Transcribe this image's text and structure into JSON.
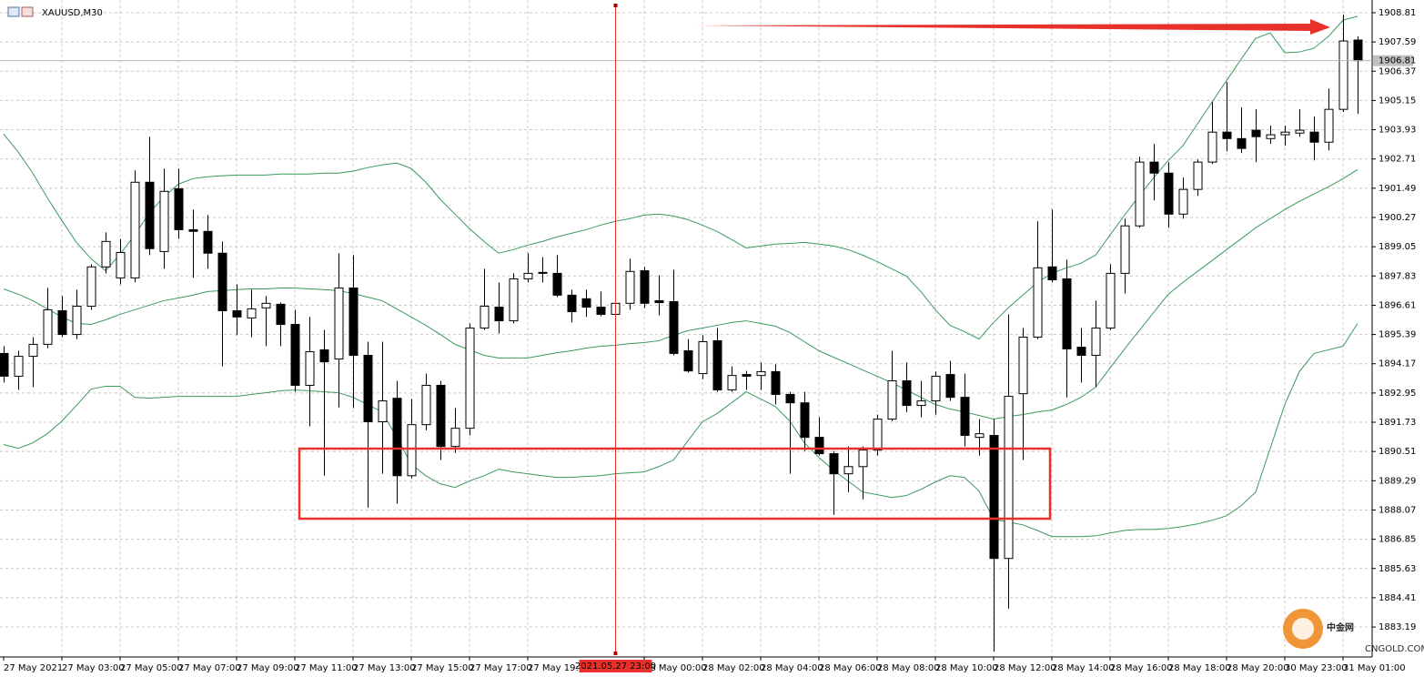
{
  "chart_data": {
    "type": "candlestick",
    "title": "XAUUSD,M30",
    "crosshair_label": "2021.05.27 23:00",
    "bid": 1906.81,
    "watermark": "中金网",
    "watermark_sub": "CNGOLD.COM",
    "up_color": "#ffffff",
    "down_color": "#000000",
    "grid": true,
    "ylim": [
      1881.94,
      1909.34
    ],
    "yticks": [
      1908.81,
      1907.59,
      1906.37,
      1905.15,
      1903.93,
      1902.71,
      1901.49,
      1900.27,
      1899.05,
      1897.83,
      1896.61,
      1895.39,
      1894.17,
      1892.95,
      1891.73,
      1890.51,
      1889.29,
      1888.07,
      1886.85,
      1885.63,
      1884.41,
      1883.19
    ],
    "categories": [
      "27 May 2021",
      null,
      null,
      null,
      "27 May 03:00",
      null,
      null,
      null,
      "27 May 05:00",
      null,
      null,
      null,
      "27 May 07:00",
      null,
      null,
      null,
      "27 May 09:00",
      null,
      null,
      null,
      "27 May 11:00",
      null,
      null,
      null,
      "27 May 13:00",
      null,
      null,
      null,
      "27 May 15:00",
      null,
      null,
      null,
      "27 May 17:00",
      null,
      null,
      null,
      "27 May 19:00",
      null,
      null,
      null,
      null,
      null,
      null,
      null,
      "28 May 00:00",
      null,
      null,
      null,
      "28 May 02:00",
      null,
      null,
      null,
      "28 May 04:00",
      null,
      null,
      null,
      "28 May 06:00",
      null,
      null,
      null,
      "28 May 08:00",
      null,
      null,
      null,
      "28 May 10:00",
      null,
      null,
      null,
      "28 May 12:00",
      null,
      null,
      null,
      "28 May 14:00",
      null,
      null,
      null,
      "28 May 16:00",
      null,
      null,
      null,
      "28 May 18:00",
      null,
      null,
      null,
      "28 May 20:00",
      null,
      null,
      null,
      "30 May 23:00",
      null,
      null,
      null,
      "31 May 01:00",
      null
    ],
    "open": [
      1894.6,
      1893.65,
      1894.48,
      1894.98,
      1896.38,
      1895.39,
      1896.57,
      1898.21,
      1897.75,
      1897.75,
      1901.74,
      1898.85,
      1901.47,
      1899.76,
      1899.69,
      1898.78,
      1896.38,
      1896.08,
      1896.5,
      1896.65,
      1895.81,
      1893.27,
      1894.75,
      1894.37,
      1897.33,
      1894.52,
      1891.75,
      1892.73,
      1889.5,
      1891.63,
      1893.27,
      1890.72,
      1891.48,
      1895.66,
      1896.53,
      1895.96,
      1897.71,
      1897.98,
      1897.94,
      1897.03,
      1896.88,
      1896.53,
      1896.23,
      1896.69,
      1898.05,
      1896.8,
      1896.76,
      1894.71,
      1893.76,
      1895.13,
      1893.08,
      1893.72,
      1893.68,
      1893.84,
      1892.89,
      1892.54,
      1891.1,
      1890.42,
      1889.58,
      1889.88,
      1890.57,
      1891.86,
      1893.46,
      1892.43,
      1892.62,
      1893.72,
      1892.77,
      1891.1,
      1891.18,
      1886.05,
      1892.92,
      1895.28,
      1898.21,
      1897.71,
      1894.86,
      1894.52,
      1895.66,
      1897.94,
      1899.92,
      1902.58,
      1902.12,
      1900.41,
      1901.44,
      1902.58,
      1903.83,
      1903.56,
      1903.91,
      1903.56,
      1903.72,
      1903.79,
      1903.83,
      1903.41,
      1904.78,
      1907.67
    ],
    "high": [
      1894.9,
      1894.71,
      1895.28,
      1897.33,
      1896.99,
      1897.26,
      1898.32,
      1899.65,
      1899.38,
      1902.23,
      1903.64,
      1902.31,
      1902.31,
      1900.6,
      1900.37,
      1899.27,
      1897.48,
      1897.26,
      1896.99,
      1896.72,
      1896.42,
      1896.12,
      1895.58,
      1898.78,
      1898.7,
      1895.09,
      1895.09,
      1893.46,
      1892.7,
      1893.76,
      1893.46,
      1892.32,
      1895.85,
      1898.13,
      1897.56,
      1897.94,
      1898.78,
      1898.62,
      1898.7,
      1897.26,
      1897.26,
      1897.18,
      1896.99,
      1898.55,
      1898.21,
      1897.86,
      1898.09,
      1895.2,
      1895.36,
      1895.66,
      1894.06,
      1893.87,
      1894.22,
      1894.14,
      1893.0,
      1893.0,
      1891.94,
      1890.53,
      1890.72,
      1890.72,
      1892.05,
      1894.71,
      1894.22,
      1893.46,
      1893.84,
      1894.29,
      1893.76,
      1891.86,
      1891.86,
      1896.23,
      1895.66,
      1900.11,
      1900.6,
      1898.51,
      1895.66,
      1896.8,
      1898.32,
      1900.22,
      1902.8,
      1903.34,
      1902.58,
      1901.93,
      1902.69,
      1905.08,
      1905.92,
      1904.86,
      1904.78,
      1904.1,
      1904.1,
      1904.78,
      1904.48,
      1905.65,
      1908.73,
      1907.82
    ],
    "low": [
      1893.38,
      1893.08,
      1893.19,
      1894.82,
      1895.28,
      1895.2,
      1896.42,
      1897.94,
      1897.48,
      1897.56,
      1898.7,
      1898.13,
      1899.38,
      1897.75,
      1898.13,
      1894.06,
      1895.36,
      1895.28,
      1894.9,
      1894.9,
      1893.0,
      1891.56,
      1889.5,
      1892.35,
      1892.32,
      1888.17,
      1889.58,
      1888.33,
      1889.39,
      1891.4,
      1890.15,
      1890.45,
      1891.18,
      1895.58,
      1895.43,
      1895.85,
      1897.56,
      1897.56,
      1896.95,
      1895.89,
      1896.12,
      1896.15,
      1896.19,
      1896.42,
      1896.5,
      1896.19,
      1894.52,
      1893.8,
      1893.53,
      1893.0,
      1893.0,
      1893.08,
      1893.08,
      1892.47,
      1889.58,
      1890.53,
      1890.34,
      1887.87,
      1888.82,
      1888.52,
      1890.34,
      1891.78,
      1892.16,
      1891.94,
      1892.05,
      1892.62,
      1890.72,
      1890.34,
      1882.17,
      1883.96,
      1890.15,
      1895.2,
      1897.56,
      1892.77,
      1893.38,
      1893.19,
      1895.58,
      1897.1,
      1899.84,
      1900.98,
      1899.84,
      1900.22,
      1901.17,
      1902.5,
      1903.03,
      1902.96,
      1902.58,
      1903.34,
      1903.26,
      1903.64,
      1902.65,
      1903.07,
      1904.67,
      1904.59
    ],
    "close": [
      1893.65,
      1894.48,
      1894.98,
      1896.42,
      1895.39,
      1896.57,
      1898.21,
      1899.27,
      1898.81,
      1901.74,
      1898.97,
      1901.36,
      1899.76,
      1899.69,
      1898.78,
      1896.38,
      1896.12,
      1896.46,
      1896.69,
      1895.81,
      1893.27,
      1894.67,
      1894.25,
      1897.33,
      1894.52,
      1891.75,
      1892.62,
      1889.5,
      1891.63,
      1893.27,
      1890.72,
      1891.48,
      1895.66,
      1896.57,
      1895.96,
      1897.71,
      1897.94,
      1897.94,
      1897.03,
      1896.34,
      1896.53,
      1896.23,
      1896.69,
      1898.02,
      1896.69,
      1896.72,
      1894.6,
      1893.87,
      1895.09,
      1893.08,
      1893.68,
      1893.65,
      1893.84,
      1892.89,
      1892.54,
      1891.1,
      1890.42,
      1889.58,
      1889.88,
      1890.57,
      1891.86,
      1893.46,
      1892.43,
      1892.62,
      1893.65,
      1892.77,
      1891.18,
      1891.25,
      1886.05,
      1892.81,
      1895.28,
      1898.17,
      1897.67,
      1894.79,
      1894.52,
      1895.66,
      1897.94,
      1899.92,
      1902.58,
      1902.12,
      1900.41,
      1901.44,
      1902.58,
      1903.83,
      1903.56,
      1903.15,
      1903.64,
      1903.72,
      1903.83,
      1903.91,
      1903.41,
      1904.78,
      1907.63,
      1906.81
    ],
    "bands": [
      {
        "color": "#3a9a5c",
        "values": [
          1903.75,
          1903.0,
          1902.12,
          1901.09,
          1900.14,
          1899.23,
          1898.55,
          1898.05,
          1898.74,
          1899.54,
          1900.45,
          1901.13,
          1901.66,
          1901.89,
          1901.97,
          1902.01,
          1902.04,
          1902.04,
          1902.04,
          1902.08,
          1902.08,
          1902.08,
          1902.12,
          1902.12,
          1902.2,
          1902.35,
          1902.46,
          1902.54,
          1902.31,
          1901.74,
          1901.02,
          1900.41,
          1899.8,
          1899.27,
          1898.78,
          1898.93,
          1899.12,
          1899.27,
          1899.46,
          1899.61,
          1899.76,
          1899.95,
          1900.11,
          1900.22,
          1900.37,
          1900.41,
          1900.33,
          1900.18,
          1899.95,
          1899.69,
          1899.35,
          1899.0,
          1899.08,
          1899.16,
          1899.19,
          1899.23,
          1899.16,
          1899.08,
          1898.93,
          1898.7,
          1898.43,
          1898.13,
          1897.83,
          1897.18,
          1896.42,
          1895.77,
          1895.51,
          1895.2,
          1895.89,
          1896.5,
          1897.03,
          1897.56,
          1897.94,
          1898.17,
          1898.36,
          1898.7,
          1899.54,
          1900.37,
          1901.17,
          1901.93,
          1902.65,
          1903.26,
          1904.17,
          1905.08,
          1905.98,
          1906.87,
          1907.74,
          1907.97,
          1907.14,
          1907.17,
          1907.33,
          1907.82,
          1908.5,
          1908.66
        ]
      },
      {
        "color": "#3a9a5c",
        "values": [
          1897.29,
          1897.07,
          1896.8,
          1896.46,
          1896.12,
          1895.85,
          1895.81,
          1896.0,
          1896.23,
          1896.42,
          1896.61,
          1896.8,
          1896.91,
          1897.03,
          1897.18,
          1897.22,
          1897.26,
          1897.29,
          1897.29,
          1897.33,
          1897.33,
          1897.29,
          1897.26,
          1897.22,
          1897.1,
          1896.95,
          1896.8,
          1896.46,
          1896.12,
          1895.77,
          1895.39,
          1894.98,
          1894.75,
          1894.52,
          1894.41,
          1894.41,
          1894.41,
          1894.52,
          1894.63,
          1894.71,
          1894.82,
          1894.9,
          1894.94,
          1895.01,
          1895.05,
          1895.13,
          1895.36,
          1895.55,
          1895.66,
          1895.77,
          1895.89,
          1895.96,
          1895.85,
          1895.74,
          1895.47,
          1895.09,
          1894.71,
          1894.44,
          1894.18,
          1893.91,
          1893.65,
          1893.38,
          1893.08,
          1892.77,
          1892.47,
          1892.28,
          1892.16,
          1892.01,
          1891.86,
          1891.97,
          1892.05,
          1892.16,
          1892.24,
          1892.47,
          1892.77,
          1893.19,
          1893.99,
          1894.79,
          1895.55,
          1896.31,
          1897.07,
          1897.56,
          1898.02,
          1898.47,
          1898.93,
          1899.38,
          1899.84,
          1900.22,
          1900.6,
          1900.94,
          1901.25,
          1901.55,
          1901.89,
          1902.27
        ]
      },
      {
        "color": "#3a9a5c",
        "values": [
          1890.8,
          1890.64,
          1890.87,
          1891.25,
          1891.78,
          1892.43,
          1893.11,
          1893.23,
          1893.23,
          1892.77,
          1892.73,
          1892.77,
          1892.81,
          1892.81,
          1892.81,
          1892.81,
          1892.81,
          1892.89,
          1892.96,
          1893.04,
          1893.08,
          1893.04,
          1893.0,
          1892.96,
          1892.77,
          1892.47,
          1892.16,
          1891.1,
          1889.98,
          1889.5,
          1889.16,
          1889.01,
          1889.28,
          1889.5,
          1889.77,
          1889.66,
          1889.58,
          1889.5,
          1889.43,
          1889.43,
          1889.47,
          1889.5,
          1889.58,
          1889.62,
          1889.66,
          1889.88,
          1890.15,
          1890.95,
          1891.75,
          1892.09,
          1892.54,
          1893.0,
          1892.7,
          1892.39,
          1891.78,
          1890.87,
          1890.26,
          1889.73,
          1889.28,
          1888.82,
          1888.71,
          1888.59,
          1888.67,
          1888.93,
          1889.24,
          1889.5,
          1889.43,
          1888.86,
          1887.68,
          1887.57,
          1887.45,
          1887.22,
          1886.96,
          1886.96,
          1886.96,
          1886.99,
          1887.11,
          1887.22,
          1887.26,
          1887.26,
          1887.3,
          1887.38,
          1887.49,
          1887.64,
          1887.83,
          1888.25,
          1888.82,
          1890.64,
          1892.47,
          1893.84,
          1894.6,
          1894.75,
          1894.9,
          1895.85
        ]
      }
    ]
  }
}
